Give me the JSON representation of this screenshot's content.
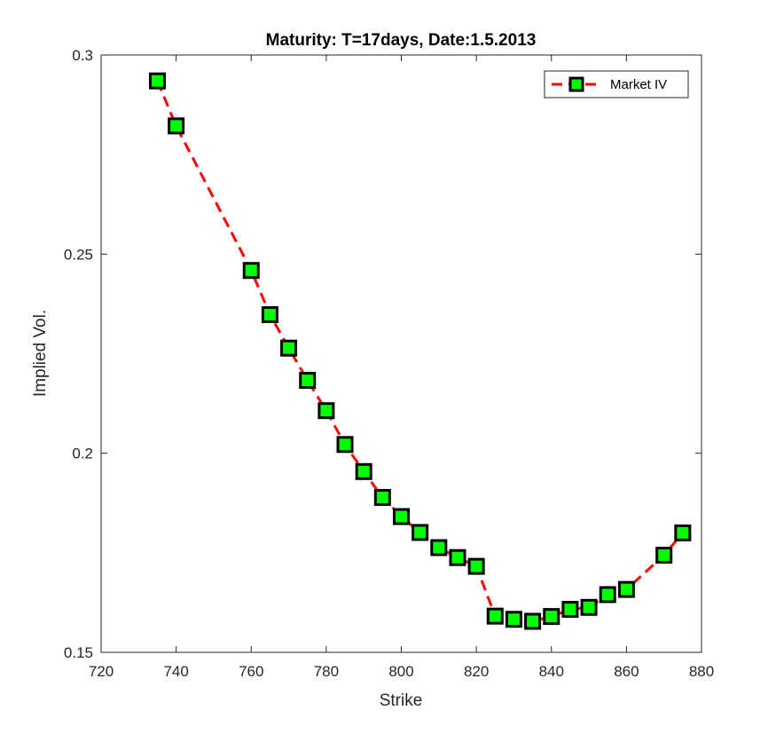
{
  "chart_data": {
    "type": "line",
    "title": "Maturity: T=17days, Date:1.5.2013",
    "xlabel": "Strike",
    "ylabel": "Implied Vol.",
    "xlim": [
      720,
      880
    ],
    "ylim": [
      0.15,
      0.3
    ],
    "xticks": [
      "720",
      "740",
      "760",
      "780",
      "800",
      "820",
      "840",
      "860",
      "880"
    ],
    "yticks": [
      "0.15",
      "0.2",
      "0.25",
      "0.3"
    ],
    "grid": false,
    "legend_position": "top-right",
    "series": [
      {
        "name": "Market IV",
        "line_color": "#ff0000",
        "line_style": "dashed",
        "marker": "square",
        "marker_face": "#00ff00",
        "marker_edge": "#000000",
        "x": [
          735,
          740,
          760,
          765,
          770,
          775,
          780,
          785,
          790,
          795,
          800,
          805,
          810,
          815,
          820,
          825,
          830,
          835,
          840,
          845,
          850,
          855,
          860,
          870,
          875
        ],
        "y": [
          0.2935,
          0.2822,
          0.2459,
          0.2348,
          0.2264,
          0.2183,
          0.2107,
          0.2022,
          0.1954,
          0.1889,
          0.1841,
          0.1801,
          0.1763,
          0.1738,
          0.1716,
          0.1591,
          0.1583,
          0.1578,
          0.159,
          0.1608,
          0.1613,
          0.1645,
          0.1658,
          0.1744,
          0.18
        ]
      }
    ]
  }
}
